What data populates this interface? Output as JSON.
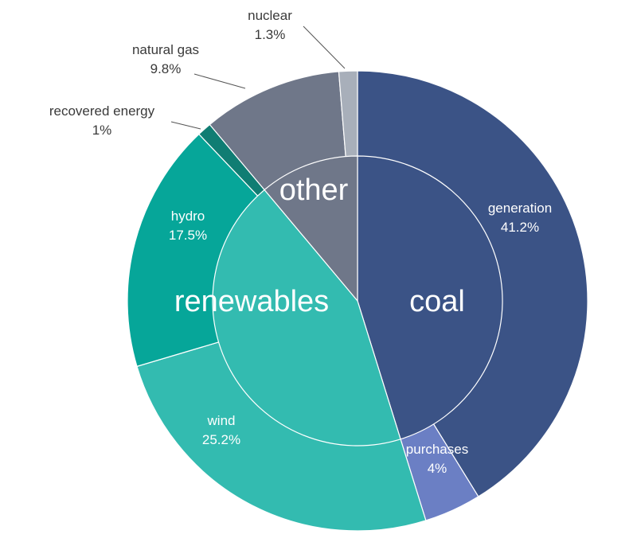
{
  "chart_data": {
    "type": "pie",
    "subtype": "nested-donut",
    "start_angle_deg": 0,
    "direction": "clockwise",
    "groups": [
      {
        "name": "coal",
        "color": "#3b5386",
        "segments": [
          "generation",
          "purchases"
        ]
      },
      {
        "name": "renewables",
        "color": "#33bbb0",
        "segments": [
          "wind",
          "hydro",
          "recovered energy"
        ]
      },
      {
        "name": "other",
        "color": "#6f7789",
        "segments": [
          "natural gas",
          "nuclear"
        ]
      }
    ],
    "segments": [
      {
        "name": "generation",
        "value": 41.2,
        "label": "41.2%",
        "color": "#3b5386"
      },
      {
        "name": "purchases",
        "value": 4,
        "label": "4%",
        "color": "#6b7fc4"
      },
      {
        "name": "wind",
        "value": 25.2,
        "label": "25.2%",
        "color": "#33bbb0"
      },
      {
        "name": "hydro",
        "value": 17.5,
        "label": "17.5%",
        "color": "#06a699"
      },
      {
        "name": "recovered energy",
        "value": 1,
        "label": "1%",
        "color": "#107d73"
      },
      {
        "name": "natural gas",
        "value": 9.8,
        "label": "9.8%",
        "color": "#6f7789"
      },
      {
        "name": "nuclear",
        "value": 1.3,
        "label": "1.3%",
        "color": "#a8afba"
      }
    ],
    "inside_labels": [
      "generation",
      "purchases",
      "wind",
      "hydro"
    ],
    "outside_labels": [
      "recovered energy",
      "natural gas",
      "nuclear"
    ]
  }
}
